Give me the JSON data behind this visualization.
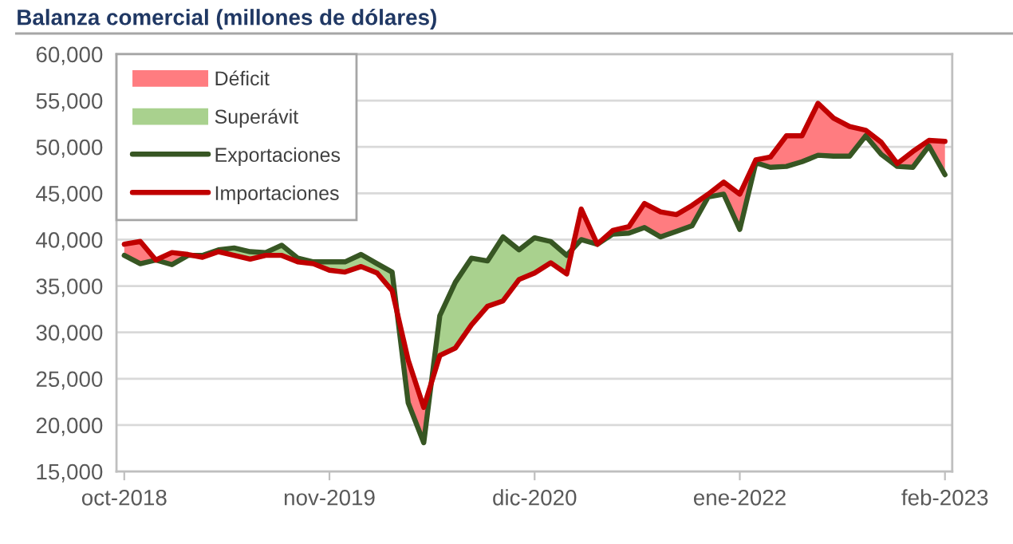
{
  "chart_data": {
    "type": "line",
    "title": "Balanza comercial (millones de dólares)",
    "x": [
      "2018-10",
      "2018-11",
      "2018-12",
      "2019-01",
      "2019-02",
      "2019-03",
      "2019-04",
      "2019-05",
      "2019-06",
      "2019-07",
      "2019-08",
      "2019-09",
      "2019-10",
      "2019-11",
      "2019-12",
      "2020-01",
      "2020-02",
      "2020-03",
      "2020-04",
      "2020-05",
      "2020-06",
      "2020-07",
      "2020-08",
      "2020-09",
      "2020-10",
      "2020-11",
      "2020-12",
      "2021-01",
      "2021-02",
      "2021-03",
      "2021-04",
      "2021-05",
      "2021-06",
      "2021-07",
      "2021-08",
      "2021-09",
      "2021-10",
      "2021-11",
      "2021-12",
      "2022-01",
      "2022-02",
      "2022-03",
      "2022-04",
      "2022-05",
      "2022-06",
      "2022-07",
      "2022-08",
      "2022-09",
      "2022-10",
      "2022-11",
      "2022-12",
      "2023-01",
      "2023-02"
    ],
    "series": [
      {
        "name": "Déficit",
        "type": "area",
        "color": "#ff7c80",
        "x": [
          "2018-10",
          "2018-11",
          "2018-12",
          "2019-01",
          "2019-02",
          "2019-02-10",
          "2019-03",
          "2020-03-10",
          "2020-04",
          "2020-05",
          "2020-05-15",
          "2020-06",
          "2021-02-11",
          "2021-03",
          "2021-04",
          "2021-05",
          "2021-06",
          "2021-07",
          "2021-08",
          "2021-09",
          "2021-10",
          "2021-11",
          "2021-12",
          "2022-01",
          "2022-02",
          "2022-03",
          "2022-04",
          "2022-05",
          "2022-06",
          "2022-07",
          "2022-08",
          "2022-09",
          "2022-10",
          "2022-11",
          "2022-12",
          "2023-01",
          "2023-02"
        ],
        "values": [
          null,
          null,
          null,
          null,
          null,
          null,
          null,
          null,
          null,
          null,
          null,
          null,
          null,
          null,
          null,
          null,
          null,
          null,
          null,
          null,
          null,
          null,
          null,
          null,
          null,
          null,
          null,
          null,
          null,
          null,
          null,
          null,
          null,
          null,
          null,
          null,
          null
        ],
        "lower": [
          38300,
          37400,
          37800,
          37300,
          38300,
          38300,
          null,
          32200,
          22400,
          18100,
          24500,
          null,
          38900,
          40000,
          39500,
          40600,
          40700,
          41300,
          40300,
          40900,
          41500,
          44600,
          44900,
          41100,
          48300,
          47800,
          47900,
          48400,
          49100,
          49000,
          49000,
          51200,
          49200,
          47900,
          47800,
          50100,
          47000
        ],
        "upper": [
          39500,
          39800,
          37800,
          38600,
          38400,
          38300,
          null,
          32200,
          27000,
          21900,
          24500,
          null,
          38900,
          43300,
          39500,
          41000,
          41400,
          43900,
          43000,
          42700,
          43700,
          44900,
          46200,
          44900,
          48600,
          48900,
          51200,
          51200,
          54700,
          53100,
          52200,
          51800,
          50500,
          48200,
          49500,
          50700,
          50600
        ]
      },
      {
        "name": "Superávit",
        "type": "area",
        "color": "#a9d18e",
        "x": [
          "2019-02-10",
          "2019-03",
          "2019-04",
          "2019-05",
          "2019-06",
          "2019-07",
          "2019-08",
          "2019-09",
          "2019-10",
          "2019-11",
          "2019-12",
          "2020-01",
          "2020-02",
          "2020-03",
          "2020-03-10",
          "2020-04",
          "2020-05-15",
          "2020-06",
          "2020-07",
          "2020-08",
          "2020-09",
          "2020-10",
          "2020-11",
          "2020-12",
          "2021-01",
          "2021-02",
          "2021-02-11"
        ],
        "values": [
          null,
          null,
          null,
          null,
          null,
          null,
          null,
          null,
          null,
          null,
          null,
          null,
          null,
          null,
          null,
          null,
          null,
          null,
          null,
          null,
          null,
          null,
          null,
          null,
          null,
          null,
          null
        ],
        "lower": [
          38300,
          38100,
          38700,
          38300,
          37900,
          38300,
          38300,
          37600,
          37400,
          36700,
          36500,
          37100,
          36400,
          34500,
          32200,
          null,
          24500,
          27500,
          28300,
          30800,
          32800,
          33400,
          35700,
          36400,
          37500,
          36300,
          38900
        ],
        "upper": [
          38300,
          38300,
          38900,
          39100,
          38700,
          38600,
          39400,
          38000,
          37600,
          37600,
          37600,
          38400,
          37400,
          36500,
          32200,
          null,
          24500,
          31800,
          35400,
          38000,
          37700,
          40300,
          38900,
          40200,
          39800,
          38300,
          38900
        ]
      },
      {
        "name": "Exportaciones",
        "color": "#375623",
        "values": [
          38300,
          37400,
          37800,
          37300,
          38300,
          38300,
          38900,
          39100,
          38700,
          38600,
          39400,
          38000,
          37600,
          37600,
          37600,
          38400,
          37400,
          36500,
          22400,
          18100,
          31800,
          35400,
          38000,
          37700,
          40300,
          38900,
          40200,
          39800,
          38300,
          40000,
          39500,
          40600,
          40700,
          41300,
          40300,
          40900,
          41500,
          44600,
          44900,
          41100,
          48300,
          47800,
          47900,
          48400,
          49100,
          49000,
          49000,
          51200,
          49200,
          47900,
          47800,
          50100,
          47000
        ]
      },
      {
        "name": "Importaciones",
        "color": "#c00000",
        "values": [
          39500,
          39800,
          37800,
          38600,
          38400,
          38100,
          38700,
          38300,
          37900,
          38300,
          38300,
          37600,
          37400,
          36700,
          36500,
          37100,
          36400,
          34500,
          27000,
          21900,
          27500,
          28300,
          30800,
          32800,
          33400,
          35700,
          36400,
          37500,
          36300,
          43300,
          39500,
          41000,
          41400,
          43900,
          43000,
          42700,
          43700,
          44900,
          46200,
          44900,
          48600,
          48900,
          51200,
          51200,
          54700,
          53100,
          52200,
          51800,
          50500,
          48200,
          49500,
          50700,
          50600
        ]
      }
    ],
    "xlim": [
      "2018-09-16",
      "2023-02-15"
    ],
    "xticks": [
      {
        "value": "2018-10",
        "label": "oct-2018"
      },
      {
        "value": "2019-11",
        "label": "nov-2019"
      },
      {
        "value": "2020-12",
        "label": "dic-2020"
      },
      {
        "value": "2022-01",
        "label": "ene-2022"
      },
      {
        "value": "2023-02",
        "label": "feb-2023"
      }
    ],
    "ylim": [
      15000,
      60000
    ],
    "yticks": [
      {
        "value": 15000,
        "label": "15,000"
      },
      {
        "value": 20000,
        "label": "20,000"
      },
      {
        "value": 25000,
        "label": "25,000"
      },
      {
        "value": 30000,
        "label": "30,000"
      },
      {
        "value": 35000,
        "label": "35,000"
      },
      {
        "value": 40000,
        "label": "40,000"
      },
      {
        "value": 45000,
        "label": "45,000"
      },
      {
        "value": 50000,
        "label": "50,000"
      },
      {
        "value": 55000,
        "label": "55,000"
      },
      {
        "value": 60000,
        "label": "60,000"
      }
    ],
    "grid": "y",
    "legend": "top left"
  }
}
